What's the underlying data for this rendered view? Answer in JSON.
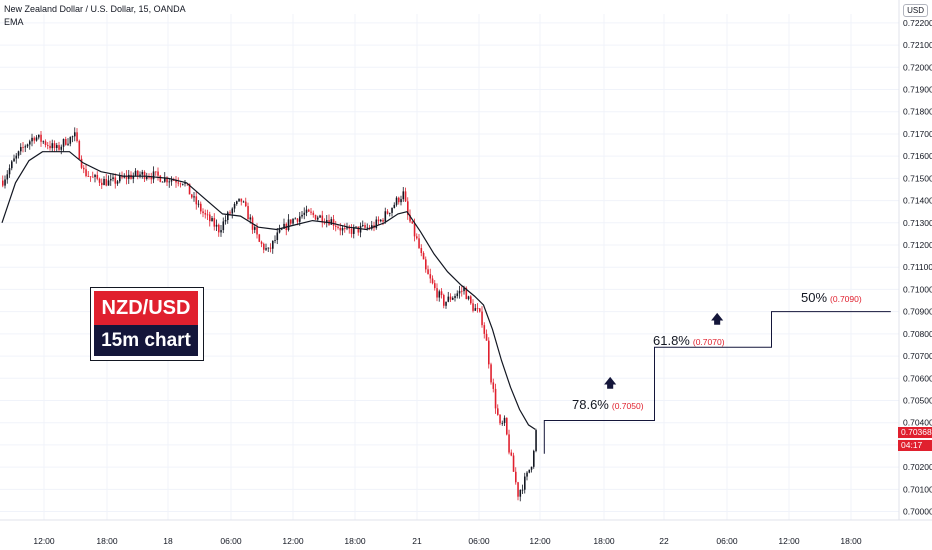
{
  "header": {
    "symbol_line": "New Zealand Dollar / U.S. Dollar, 15, OANDA",
    "indicator": "EMA"
  },
  "currency_button": "USD",
  "title_box": {
    "pair": "NZD/USD",
    "timeframe": "15m chart"
  },
  "price_badges": {
    "last_price": "0.70368",
    "countdown": "04:17",
    "color": "#e0202e"
  },
  "fib_levels": [
    {
      "pct": "78.6%",
      "value": "(0.7050)"
    },
    {
      "pct": "61.8%",
      "value": "(0.7070)"
    },
    {
      "pct": "50%",
      "value": "(0.7090)"
    }
  ],
  "chart_data": {
    "type": "candlestick",
    "y_ticks": [
      "0.72200",
      "0.72100",
      "0.72000",
      "0.71900",
      "0.71800",
      "0.71700",
      "0.71600",
      "0.71500",
      "0.71400",
      "0.71300",
      "0.71200",
      "0.71100",
      "0.71000",
      "0.70900",
      "0.70800",
      "0.70700",
      "0.70600",
      "0.70500",
      "0.70400",
      "0.70300",
      "0.70200",
      "0.70100",
      "0.70000"
    ],
    "x_ticks": [
      "12:00",
      "18:00",
      "18",
      "06:00",
      "12:00",
      "18:00",
      "21",
      "06:00",
      "12:00",
      "18:00",
      "22",
      "06:00",
      "12:00",
      "18:00"
    ],
    "ylim": [
      0.6998,
      0.7224
    ],
    "colors": {
      "up": "#131722",
      "down": "#e0202e",
      "ema": "#131722"
    },
    "close_path": [
      [
        0,
        0.7149
      ],
      [
        5,
        0.7158
      ],
      [
        10,
        0.7165
      ],
      [
        14,
        0.7169
      ],
      [
        19,
        0.7166
      ],
      [
        24,
        0.7163
      ],
      [
        28,
        0.7167
      ],
      [
        32,
        0.7169
      ],
      [
        36,
        0.7153
      ],
      [
        40,
        0.715
      ],
      [
        48,
        0.7148
      ],
      [
        56,
        0.7151
      ],
      [
        64,
        0.7152
      ],
      [
        72,
        0.715
      ],
      [
        80,
        0.7149
      ],
      [
        85,
        0.714
      ],
      [
        90,
        0.7133
      ],
      [
        96,
        0.7127
      ],
      [
        102,
        0.7136
      ],
      [
        106,
        0.714
      ],
      [
        110,
        0.7131
      ],
      [
        114,
        0.7121
      ],
      [
        118,
        0.7117
      ],
      [
        122,
        0.7124
      ],
      [
        128,
        0.7131
      ],
      [
        134,
        0.7134
      ],
      [
        140,
        0.7133
      ],
      [
        146,
        0.7131
      ],
      [
        152,
        0.7126
      ],
      [
        158,
        0.7127
      ],
      [
        164,
        0.7128
      ],
      [
        168,
        0.7131
      ],
      [
        172,
        0.7136
      ],
      [
        176,
        0.7141
      ],
      [
        178,
        0.7143
      ],
      [
        180,
        0.7133
      ],
      [
        184,
        0.7122
      ],
      [
        188,
        0.7108
      ],
      [
        192,
        0.71
      ],
      [
        196,
        0.7094
      ],
      [
        200,
        0.7097
      ],
      [
        205,
        0.71
      ],
      [
        208,
        0.7093
      ],
      [
        211,
        0.709
      ],
      [
        213,
        0.7086
      ],
      [
        215,
        0.7076
      ],
      [
        217,
        0.706
      ],
      [
        219,
        0.7048
      ],
      [
        221,
        0.7038
      ],
      [
        223,
        0.704
      ],
      [
        225,
        0.7028
      ],
      [
        227,
        0.7018
      ],
      [
        229,
        0.7008
      ],
      [
        231,
        0.7012
      ],
      [
        233,
        0.7016
      ],
      [
        235,
        0.7022
      ],
      [
        237,
        0.7036
      ]
    ],
    "ema_path": [
      [
        0,
        0.713
      ],
      [
        6,
        0.7148
      ],
      [
        12,
        0.7158
      ],
      [
        18,
        0.7162
      ],
      [
        24,
        0.7162
      ],
      [
        30,
        0.7162
      ],
      [
        36,
        0.7157
      ],
      [
        44,
        0.7153
      ],
      [
        54,
        0.7151
      ],
      [
        64,
        0.7151
      ],
      [
        74,
        0.715
      ],
      [
        82,
        0.7148
      ],
      [
        90,
        0.7141
      ],
      [
        98,
        0.7134
      ],
      [
        106,
        0.7133
      ],
      [
        114,
        0.7128
      ],
      [
        122,
        0.7127
      ],
      [
        130,
        0.7129
      ],
      [
        138,
        0.7131
      ],
      [
        146,
        0.713
      ],
      [
        154,
        0.7128
      ],
      [
        162,
        0.7127
      ],
      [
        170,
        0.713
      ],
      [
        176,
        0.7134
      ],
      [
        180,
        0.7135
      ],
      [
        186,
        0.7126
      ],
      [
        192,
        0.7116
      ],
      [
        198,
        0.7108
      ],
      [
        204,
        0.7102
      ],
      [
        210,
        0.7097
      ],
      [
        214,
        0.7093
      ],
      [
        218,
        0.7082
      ],
      [
        222,
        0.7068
      ],
      [
        226,
        0.7056
      ],
      [
        230,
        0.7046
      ],
      [
        234,
        0.7039
      ],
      [
        237,
        0.7037
      ]
    ],
    "projection": [
      [
        241,
        0.7026
      ],
      [
        241,
        0.7041
      ],
      [
        290,
        0.7041
      ],
      [
        290,
        0.7074
      ],
      [
        342,
        0.7074
      ],
      [
        342,
        0.709
      ],
      [
        395,
        0.709
      ]
    ]
  }
}
